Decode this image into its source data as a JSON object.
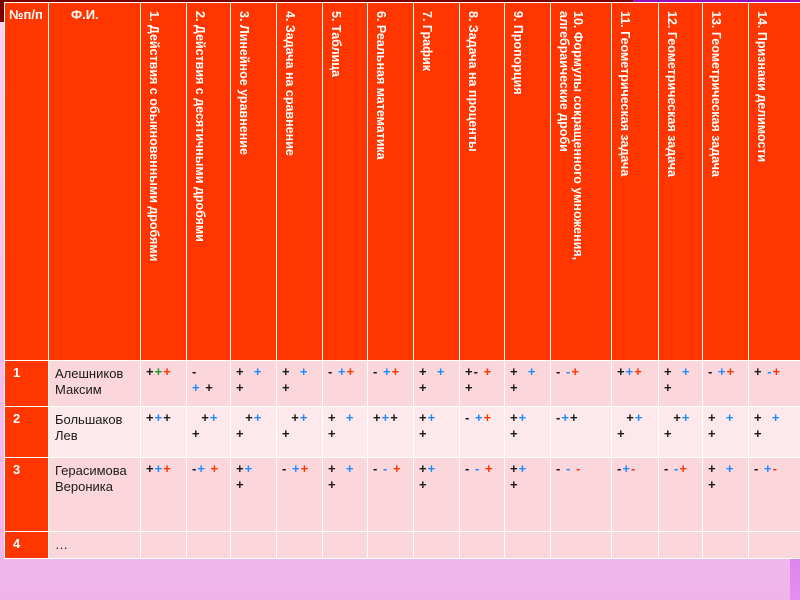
{
  "table": {
    "header": {
      "num": "№п/п",
      "name": "Ф.И.",
      "columns": [
        "1. Действия с обыкновенными дробями",
        "2. Действия с десятичными дробями",
        "3. Линейное уравнение",
        "4. Задача на сравнение",
        "5. Таблица",
        "6. Реальная математика",
        "7. График",
        "8. Задача на проценты",
        "9. Пропорция",
        "10. Формулы сокращенного умножения, алгебраические дроби",
        "11. Геометрическая задача",
        "12. Геометрическая задача",
        "13. Геометрическая задача",
        "14. Признаки делимости"
      ]
    },
    "rows": [
      {
        "num": "1",
        "name": "Алешников Максим",
        "marks": [
          [
            [
              "+",
              "p"
            ],
            [
              "+",
              "g"
            ],
            [
              "+",
              "r"
            ]
          ],
          [
            [
              "-",
              "p"
            ],
            [
              "\n",
              ""
            ],
            [
              "+",
              "b"
            ],
            [
              " ",
              ""
            ],
            [
              "+",
              "p"
            ]
          ],
          [
            [
              "+",
              "p"
            ],
            [
              "  ",
              ""
            ],
            [
              "+",
              "b"
            ],
            [
              "\n",
              ""
            ],
            [
              "+",
              "p"
            ]
          ],
          [
            [
              "+",
              "p"
            ],
            [
              "  ",
              ""
            ],
            [
              "+",
              "b"
            ],
            [
              "\n",
              ""
            ],
            [
              "+",
              "p"
            ]
          ],
          [
            [
              "-",
              "p"
            ],
            [
              " ",
              ""
            ],
            [
              "+",
              "b"
            ],
            [
              "+",
              "r"
            ]
          ],
          [
            [
              "-",
              "p"
            ],
            [
              " ",
              ""
            ],
            [
              "+",
              "b"
            ],
            [
              "+",
              "r"
            ]
          ],
          [
            [
              "+",
              "p"
            ],
            [
              "  ",
              ""
            ],
            [
              "+",
              "b"
            ],
            [
              "\n",
              ""
            ],
            [
              "+",
              "p"
            ]
          ],
          [
            [
              "+",
              "p"
            ],
            [
              "-",
              "p"
            ],
            [
              " ",
              ""
            ],
            [
              "+",
              "r"
            ],
            [
              "\n",
              ""
            ],
            [
              "+",
              "p"
            ]
          ],
          [
            [
              "+",
              "p"
            ],
            [
              "  ",
              ""
            ],
            [
              "+",
              "b"
            ],
            [
              "\n",
              ""
            ],
            [
              "+",
              "p"
            ]
          ],
          [
            [
              "-",
              "p"
            ],
            [
              " ",
              ""
            ],
            [
              "-",
              "b"
            ],
            [
              "+",
              "r"
            ]
          ],
          [
            [
              "+",
              "p"
            ],
            [
              "+",
              "b"
            ],
            [
              "+",
              "r"
            ]
          ],
          [
            [
              "+",
              "p"
            ],
            [
              "  ",
              ""
            ],
            [
              "+",
              "b"
            ],
            [
              "\n",
              ""
            ],
            [
              "+",
              "p"
            ]
          ],
          [
            [
              "-",
              "p"
            ],
            [
              " ",
              ""
            ],
            [
              "+",
              "b"
            ],
            [
              "+",
              "r"
            ]
          ],
          [
            [
              "+",
              "p"
            ],
            [
              " ",
              ""
            ],
            [
              "-",
              "b"
            ],
            [
              "+",
              "r"
            ]
          ]
        ]
      },
      {
        "num": "2",
        "name": "Большаков Лев",
        "marks": [
          [
            [
              "+",
              "p"
            ],
            [
              "+",
              "b"
            ],
            [
              "+",
              "p"
            ]
          ],
          [
            [
              "  ",
              ""
            ],
            [
              "+",
              "p"
            ],
            [
              "+",
              "b"
            ],
            [
              "\n",
              ""
            ],
            [
              "+",
              "p"
            ]
          ],
          [
            [
              "  ",
              ""
            ],
            [
              "+",
              "p"
            ],
            [
              "+",
              "b"
            ],
            [
              "\n",
              ""
            ],
            [
              "+",
              "p"
            ]
          ],
          [
            [
              "  ",
              ""
            ],
            [
              "+",
              "p"
            ],
            [
              "+",
              "b"
            ],
            [
              "\n",
              ""
            ],
            [
              "+",
              "p"
            ]
          ],
          [
            [
              "+",
              "p"
            ],
            [
              "  ",
              ""
            ],
            [
              "+",
              "b"
            ],
            [
              "\n",
              ""
            ],
            [
              "+",
              "p"
            ]
          ],
          [
            [
              "+",
              "p"
            ],
            [
              "+",
              "b"
            ],
            [
              "+",
              "p"
            ]
          ],
          [
            [
              "+",
              "p"
            ],
            [
              "+",
              "b"
            ],
            [
              "\n",
              ""
            ],
            [
              "+",
              "p"
            ]
          ],
          [
            [
              "-",
              "p"
            ],
            [
              " ",
              ""
            ],
            [
              "+",
              "b"
            ],
            [
              "+",
              "r"
            ]
          ],
          [
            [
              "+",
              "p"
            ],
            [
              "+",
              "b"
            ],
            [
              "\n",
              ""
            ],
            [
              "+",
              "p"
            ]
          ],
          [
            [
              "-",
              "p"
            ],
            [
              "+",
              "b"
            ],
            [
              "+",
              "p"
            ]
          ],
          [
            [
              "  ",
              ""
            ],
            [
              "+",
              "p"
            ],
            [
              "+",
              "b"
            ],
            [
              "\n",
              ""
            ],
            [
              "+",
              "p"
            ]
          ],
          [
            [
              "  ",
              ""
            ],
            [
              "+",
              "p"
            ],
            [
              "+",
              "b"
            ],
            [
              "\n",
              ""
            ],
            [
              "+",
              "p"
            ]
          ],
          [
            [
              "+",
              "p"
            ],
            [
              "  ",
              ""
            ],
            [
              "+",
              "b"
            ],
            [
              "\n",
              ""
            ],
            [
              "+",
              "p"
            ]
          ],
          [
            [
              "+",
              "p"
            ],
            [
              "  ",
              ""
            ],
            [
              "+",
              "b"
            ],
            [
              "\n",
              ""
            ],
            [
              "+",
              "p"
            ]
          ]
        ]
      },
      {
        "num": "3",
        "name": "Герасимова Вероника",
        "marks": [
          [
            [
              "+",
              "p"
            ],
            [
              "+",
              "b"
            ],
            [
              "+",
              "r"
            ]
          ],
          [
            [
              "-",
              "p"
            ],
            [
              "+",
              "b"
            ],
            [
              " ",
              ""
            ],
            [
              "+",
              "r"
            ]
          ],
          [
            [
              "+",
              "p"
            ],
            [
              "+",
              "b"
            ],
            [
              "\n",
              ""
            ],
            [
              "+",
              "p"
            ]
          ],
          [
            [
              "-",
              "p"
            ],
            [
              " ",
              ""
            ],
            [
              "+",
              "b"
            ],
            [
              "+",
              "r"
            ]
          ],
          [
            [
              "+",
              "p"
            ],
            [
              "  ",
              ""
            ],
            [
              "+",
              "b"
            ],
            [
              "\n",
              ""
            ],
            [
              "+",
              "p"
            ]
          ],
          [
            [
              "-",
              "p"
            ],
            [
              " ",
              ""
            ],
            [
              "-",
              "b"
            ],
            [
              " ",
              ""
            ],
            [
              "+",
              "r"
            ]
          ],
          [
            [
              "+",
              "p"
            ],
            [
              "+",
              "b"
            ],
            [
              "\n",
              ""
            ],
            [
              "+",
              "p"
            ]
          ],
          [
            [
              "-",
              "p"
            ],
            [
              " ",
              ""
            ],
            [
              "-",
              "b"
            ],
            [
              " ",
              ""
            ],
            [
              "+",
              "r"
            ]
          ],
          [
            [
              "+",
              "p"
            ],
            [
              "+",
              "b"
            ],
            [
              "\n",
              ""
            ],
            [
              "+",
              "p"
            ]
          ],
          [
            [
              "-",
              "p"
            ],
            [
              " ",
              ""
            ],
            [
              "-",
              "b"
            ],
            [
              " ",
              ""
            ],
            [
              "-",
              "r"
            ]
          ],
          [
            [
              "-",
              "p"
            ],
            [
              "+",
              "b"
            ],
            [
              "-",
              "r"
            ]
          ],
          [
            [
              "-",
              "p"
            ],
            [
              " ",
              ""
            ],
            [
              "-",
              "b"
            ],
            [
              "+",
              "r"
            ]
          ],
          [
            [
              "+",
              "p"
            ],
            [
              "  ",
              ""
            ],
            [
              "+",
              "b"
            ],
            [
              "\n",
              ""
            ],
            [
              "+",
              "p"
            ]
          ],
          [
            [
              "-",
              "p"
            ],
            [
              " ",
              ""
            ],
            [
              "+",
              "b"
            ],
            [
              "-",
              "r"
            ]
          ]
        ]
      },
      {
        "num": "4",
        "name": "…",
        "marks": [
          [],
          [],
          [],
          [],
          [],
          [],
          [],
          [],
          [],
          [],
          [],
          [],
          [],
          []
        ]
      }
    ]
  }
}
